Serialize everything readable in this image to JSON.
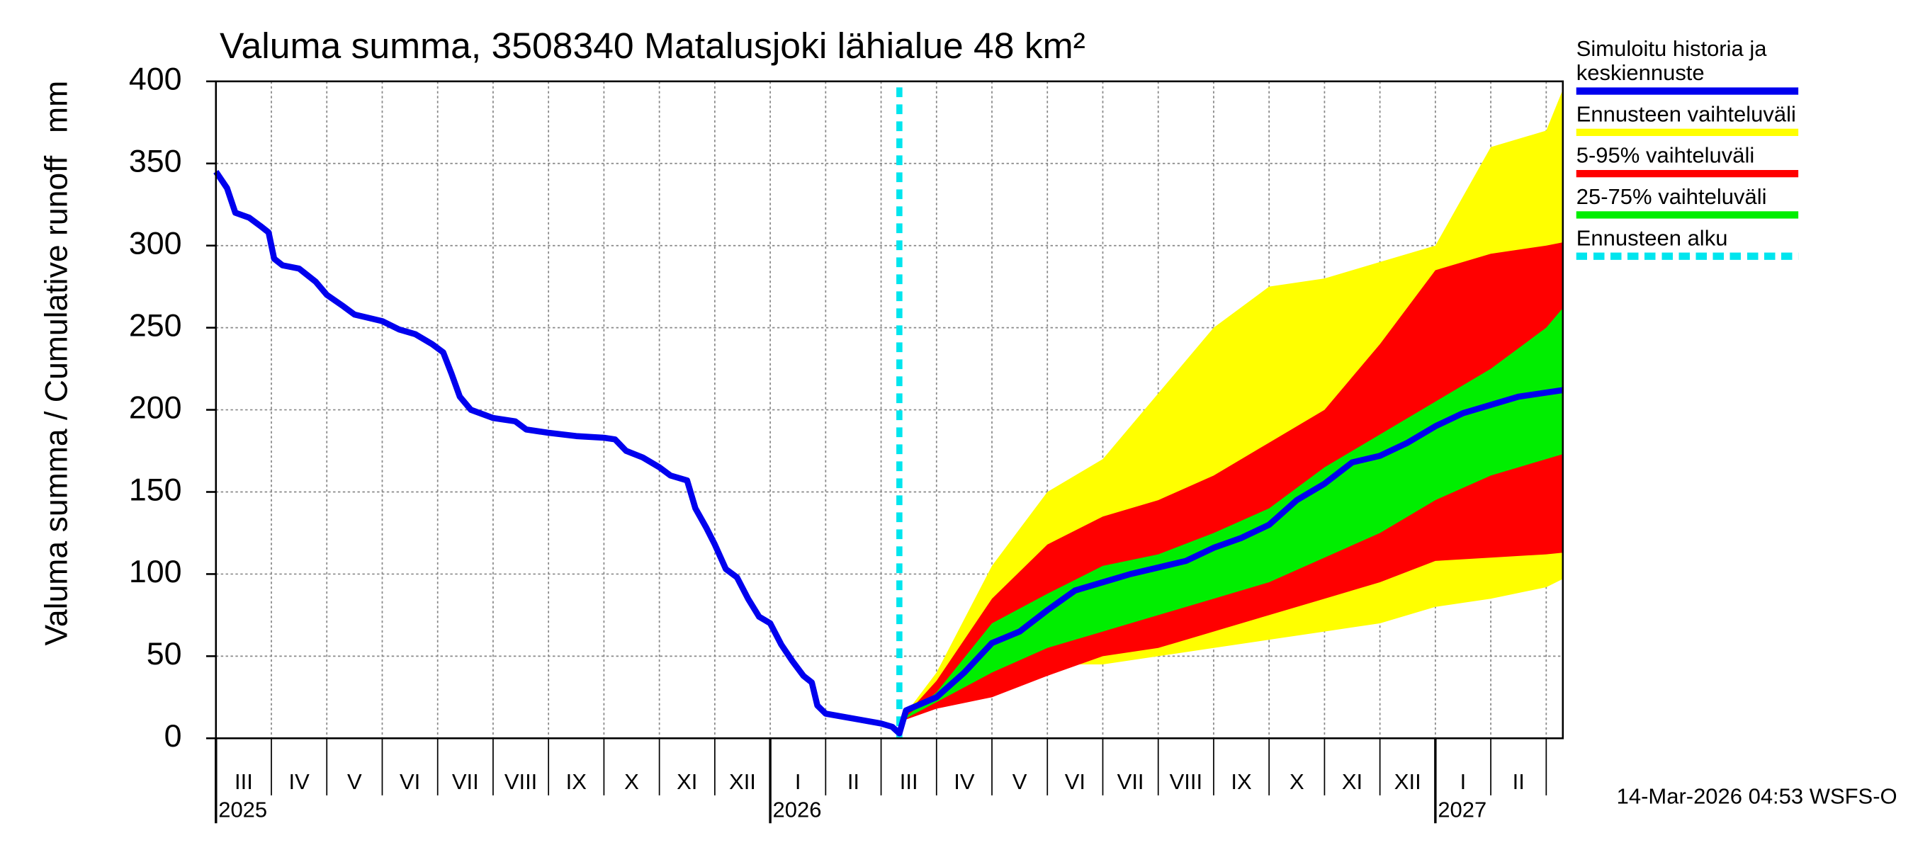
{
  "chart_data": {
    "type": "line",
    "title": "Valuma summa, 3508340 Matalusjoki lähialue 48 km²",
    "y_label": "Valuma summa / Cumulative runoff",
    "y_unit": "mm",
    "footer": "14-Mar-2026 04:53 WSFS-O",
    "xlim": [
      0,
      24.3
    ],
    "xticks": [
      0,
      1,
      2,
      3,
      4,
      5,
      6,
      7,
      8,
      9,
      10,
      11,
      12,
      13,
      14,
      15,
      16,
      17,
      18,
      19,
      20,
      21,
      22,
      23,
      24
    ],
    "month_labels": [
      "III",
      "IV",
      "V",
      "VI",
      "VII",
      "VIII",
      "IX",
      "X",
      "XI",
      "XII",
      "I",
      "II",
      "III",
      "IV",
      "V",
      "VI",
      "VII",
      "VIII",
      "IX",
      "X",
      "XI",
      "XII",
      "I",
      "II"
    ],
    "year_labels": [
      {
        "value": 0,
        "label": "2025"
      },
      {
        "value": 10,
        "label": "2026"
      },
      {
        "value": 22,
        "label": "2027"
      }
    ],
    "ylim": [
      0,
      400
    ],
    "yticks": [
      0,
      50,
      100,
      150,
      200,
      250,
      300,
      350,
      400
    ],
    "grid": true,
    "series": [
      {
        "name": "Simuloitu historia ja keskiennuste",
        "color": "#0000ee",
        "x": [
          0,
          0.2,
          0.35,
          0.6,
          0.8,
          0.95,
          1.05,
          1.2,
          1.5,
          1.8,
          2.0,
          2.3,
          2.5,
          3.0,
          3.3,
          3.6,
          3.9,
          4.1,
          4.25,
          4.4,
          4.6,
          5.0,
          5.4,
          5.6,
          6.0,
          6.5,
          7.0,
          7.2,
          7.4,
          7.7,
          8.0,
          8.2,
          8.5,
          8.65,
          8.85,
          9.0,
          9.2,
          9.4,
          9.6,
          9.8,
          10.0,
          10.2,
          10.4,
          10.6,
          10.75,
          10.85,
          11.0,
          11.5,
          12.0,
          12.2,
          12.33,
          12.45,
          13,
          13.5,
          14,
          14.5,
          15,
          15.5,
          16,
          16.5,
          17,
          17.5,
          18,
          18.5,
          19,
          19.5,
          20,
          20.5,
          21,
          21.5,
          22,
          22.5,
          23,
          23.5,
          24.3
        ],
        "values": [
          345,
          335,
          320,
          317,
          312,
          308,
          292,
          288,
          286,
          278,
          270,
          263,
          258,
          254,
          249,
          246,
          240,
          235,
          222,
          208,
          200,
          195,
          193,
          188,
          186,
          184,
          183,
          182,
          175,
          171,
          165,
          160,
          157,
          140,
          128,
          118,
          103,
          98,
          85,
          74,
          70,
          57,
          47,
          38,
          34,
          20,
          15,
          12,
          9,
          7,
          3,
          17,
          25,
          40,
          58,
          65,
          78,
          90,
          95,
          100,
          104,
          108,
          116,
          122,
          130,
          145,
          155,
          168,
          172,
          180,
          190,
          198,
          203,
          208,
          212
        ]
      }
    ],
    "bands": [
      {
        "name": "Ennusteen vaihteluväli",
        "color": "#ffff00",
        "x": [
          12.33,
          13,
          14,
          15,
          16,
          17,
          18,
          19,
          20,
          21,
          22,
          23,
          24,
          24.3
        ],
        "upper": [
          10,
          40,
          105,
          150,
          170,
          210,
          250,
          275,
          280,
          290,
          300,
          360,
          370,
          395
        ],
        "lower": [
          10,
          20,
          35,
          45,
          45,
          50,
          55,
          60,
          65,
          70,
          80,
          85,
          92,
          97
        ]
      },
      {
        "name": "5-95% vaihteluväli",
        "color": "#ff0000",
        "x": [
          12.33,
          13,
          14,
          15,
          16,
          17,
          18,
          19,
          20,
          21,
          22,
          23,
          24,
          24.3
        ],
        "upper": [
          10,
          35,
          85,
          118,
          135,
          145,
          160,
          180,
          200,
          240,
          285,
          295,
          300,
          302
        ],
        "lower": [
          10,
          18,
          25,
          38,
          50,
          55,
          65,
          75,
          85,
          95,
          108,
          110,
          112,
          113
        ]
      },
      {
        "name": "25-75% vaihteluväli",
        "color": "#00ee00",
        "x": [
          12.33,
          13,
          14,
          15,
          16,
          17,
          18,
          19,
          20,
          21,
          22,
          23,
          24,
          24.3
        ],
        "upper": [
          10,
          28,
          70,
          88,
          105,
          112,
          125,
          140,
          165,
          185,
          205,
          225,
          250,
          262
        ],
        "lower": [
          10,
          22,
          40,
          55,
          65,
          75,
          85,
          95,
          110,
          125,
          145,
          160,
          170,
          173
        ]
      }
    ],
    "forecast_start": {
      "name": "Ennusteen alku",
      "color": "#00e5ee",
      "x": 12.33
    }
  }
}
